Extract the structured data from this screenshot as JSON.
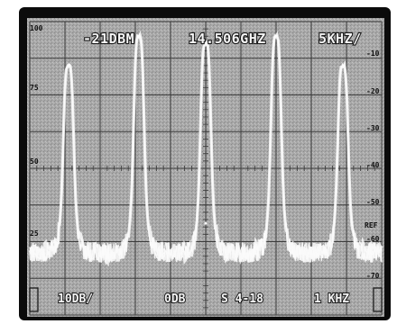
{
  "colors": {
    "bezel": "#0b0b0b",
    "screen": "#a6a6a6",
    "graticule": "#3a3a3a",
    "trace": "#fbfbfb"
  },
  "header": {
    "reference_level": "-21DBM",
    "center_frequency": "14.506GHZ",
    "span": "5KHZ/"
  },
  "footer": {
    "ref_label": "REF",
    "scale": "10DB/",
    "attenuation": "0DB",
    "sweep": "S 4-18",
    "bandwidth": "1 KHZ"
  },
  "y_ticks_left": [
    "100",
    "75",
    "50",
    "25"
  ],
  "y_ticks_right": [
    "-10",
    "-20",
    "-30",
    "-40",
    "-50",
    "-60",
    "-70"
  ],
  "chart_data": {
    "type": "line",
    "title": "",
    "xlabel": "",
    "ylabel": "",
    "xlim": [
      0,
      10
    ],
    "ylim": [
      0,
      8
    ],
    "grid": true,
    "series": [
      {
        "peaks": [
          {
            "x": 1.1,
            "y": 6.8
          },
          {
            "x": 3.1,
            "y": 7.6
          },
          {
            "x": 5.0,
            "y": 7.4
          },
          {
            "x": 7.0,
            "y": 7.6
          },
          {
            "x": 8.9,
            "y": 6.8
          },
          {
            "x": 5.0,
            "y": 2.5
          }
        ],
        "noise_floor": 1.7
      }
    ]
  }
}
